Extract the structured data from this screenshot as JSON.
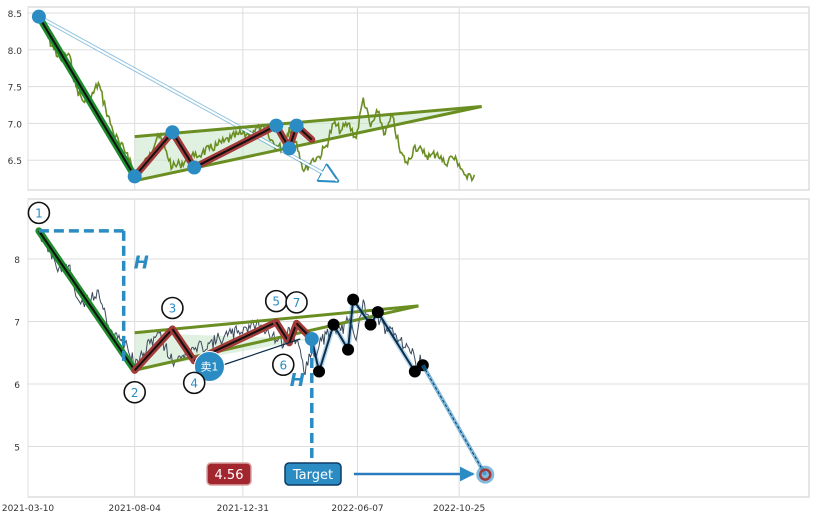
{
  "chart_data": [
    {
      "type": "line",
      "panel": "top",
      "title": "",
      "xlabel": "",
      "ylabel": "",
      "ylim": [
        6.05,
        8.6
      ],
      "y_ticks": [
        "8.5",
        "8.0",
        "7.5",
        "7.0",
        "6.5"
      ],
      "grid": true,
      "series": [
        {
          "color": "#6b8e23",
          "x": [
            "2021-03-25",
            "2021-04-05",
            "2021-04-15",
            "2021-04-25",
            "2021-05-05",
            "2021-05-15",
            "2021-05-25",
            "2021-06-05",
            "2021-06-15",
            "2021-06-25",
            "2021-07-05",
            "2021-07-15",
            "2021-07-25",
            "2021-08-04",
            "2021-08-15",
            "2021-08-25",
            "2021-09-05",
            "2021-09-15",
            "2021-09-25",
            "2021-10-05",
            "2021-10-15",
            "2021-10-25",
            "2021-11-05",
            "2021-11-15",
            "2021-11-25",
            "2021-12-05",
            "2021-12-15",
            "2021-12-25",
            "2022-01-05",
            "2022-01-15",
            "2022-01-25",
            "2022-02-05",
            "2022-02-15",
            "2022-02-25",
            "2022-03-05",
            "2022-03-15",
            "2022-03-25",
            "2022-04-05",
            "2022-04-15",
            "2022-04-25",
            "2022-05-05",
            "2022-05-15",
            "2022-05-25",
            "2022-06-05",
            "2022-06-15",
            "2022-06-25",
            "2022-07-05",
            "2022-07-15",
            "2022-07-25",
            "2022-08-05",
            "2022-08-15",
            "2022-08-25",
            "2022-09-05",
            "2022-09-15",
            "2022-09-25",
            "2022-10-05",
            "2022-10-15",
            "2022-10-25",
            "2022-11-05",
            "2022-11-15"
          ],
          "y": [
            8.45,
            8.2,
            8.0,
            7.85,
            7.95,
            7.5,
            7.3,
            7.35,
            7.55,
            7.2,
            6.9,
            6.7,
            6.6,
            6.3,
            6.4,
            6.6,
            6.85,
            6.65,
            6.4,
            6.45,
            6.5,
            6.55,
            6.6,
            6.65,
            6.7,
            6.75,
            6.8,
            6.85,
            6.85,
            6.9,
            6.95,
            6.8,
            6.7,
            6.65,
            6.95,
            6.75,
            6.35,
            6.5,
            6.55,
            6.7,
            7.0,
            6.9,
            7.0,
            6.8,
            7.35,
            6.95,
            7.15,
            6.85,
            7.1,
            6.6,
            6.45,
            6.7,
            6.6,
            6.55,
            6.6,
            6.45,
            6.55,
            6.45,
            6.25,
            6.3
          ]
        }
      ],
      "pattern": {
        "color": "#2b8cc4",
        "labels": [],
        "x": [
          "2021-03-25",
          "2021-08-04",
          "2021-09-25",
          "2021-10-25",
          "2022-02-15",
          "2022-03-05",
          "2022-03-15",
          "2022-04-05"
        ],
        "y": [
          8.45,
          6.28,
          6.88,
          6.4,
          6.97,
          6.66,
          6.97,
          6.78
        ]
      },
      "trendlines": [
        {
          "x": [
            "2021-08-04",
            "2022-11-25"
          ],
          "y": [
            6.82,
            7.23
          ]
        },
        {
          "x": [
            "2021-08-04",
            "2022-11-25"
          ],
          "y": [
            6.22,
            7.23
          ]
        }
      ],
      "projection_arrow": {
        "x": [
          "2021-03-25",
          "2022-05-10"
        ],
        "y": [
          8.45,
          6.22
        ]
      }
    },
    {
      "type": "line",
      "panel": "bottom",
      "title": "",
      "xlabel": "",
      "ylabel": "",
      "ylim": [
        4.2,
        8.95
      ],
      "y_ticks": [
        "8",
        "7",
        "6",
        "5"
      ],
      "x_ticks": [
        "2021-03-10",
        "2021-08-04",
        "2021-12-31",
        "2022-06-07",
        "2022-10-25"
      ],
      "grid": true,
      "series": [
        {
          "color": "#3d4a5c",
          "x": [
            "2021-03-25",
            "2021-04-05",
            "2021-04-15",
            "2021-04-25",
            "2021-05-05",
            "2021-05-15",
            "2021-05-25",
            "2021-06-05",
            "2021-06-15",
            "2021-06-25",
            "2021-07-05",
            "2021-07-15",
            "2021-07-25",
            "2021-08-04",
            "2021-08-15",
            "2021-08-25",
            "2021-09-05",
            "2021-09-15",
            "2021-09-25",
            "2021-10-05",
            "2021-10-15",
            "2021-10-25",
            "2021-11-05",
            "2021-11-15",
            "2021-11-25",
            "2021-12-05",
            "2021-12-15",
            "2021-12-25",
            "2022-01-05",
            "2022-01-15",
            "2022-01-25",
            "2022-02-05",
            "2022-02-15",
            "2022-02-25",
            "2022-03-05",
            "2022-03-15",
            "2022-03-25",
            "2022-04-05",
            "2022-04-15",
            "2022-04-25",
            "2022-05-05",
            "2022-05-15",
            "2022-05-25",
            "2022-06-05",
            "2022-06-15",
            "2022-06-25",
            "2022-07-05",
            "2022-07-15",
            "2022-07-25",
            "2022-08-05",
            "2022-08-15",
            "2022-08-25",
            "2022-09-05"
          ],
          "y": [
            8.45,
            8.2,
            8.0,
            7.8,
            7.9,
            7.4,
            7.3,
            7.35,
            7.5,
            7.1,
            6.8,
            6.7,
            6.6,
            6.3,
            6.45,
            6.65,
            6.85,
            6.6,
            6.35,
            6.45,
            6.5,
            6.55,
            6.6,
            6.65,
            6.7,
            6.75,
            6.8,
            6.85,
            6.9,
            6.95,
            6.95,
            6.8,
            6.7,
            6.6,
            6.9,
            6.7,
            6.2,
            6.5,
            6.6,
            6.8,
            6.95,
            6.85,
            7.0,
            6.7,
            7.35,
            6.95,
            7.1,
            6.8,
            6.9,
            6.7,
            6.6,
            6.4,
            6.35
          ]
        }
      ],
      "pattern": {
        "color": "#2b8cc4",
        "labels": [
          "1",
          "2",
          "3",
          "4",
          "5",
          "6",
          "7"
        ],
        "x": [
          "2021-03-25",
          "2021-08-04",
          "2021-09-25",
          "2021-10-25",
          "2022-02-15",
          "2022-03-05",
          "2022-03-15",
          "2022-04-05"
        ],
        "y": [
          8.45,
          6.22,
          6.88,
          6.37,
          6.99,
          6.66,
          6.97,
          6.72
        ]
      },
      "trendlines": [
        {
          "x": [
            "2021-08-04",
            "2022-08-30"
          ],
          "y": [
            6.82,
            7.25
          ]
        },
        {
          "x": [
            "2021-08-04",
            "2022-08-30"
          ],
          "y": [
            6.22,
            7.25
          ]
        }
      ],
      "projection": {
        "color": "#000000",
        "x": [
          "2022-04-05",
          "2022-04-15",
          "2022-05-05",
          "2022-05-25",
          "2022-06-01",
          "2022-06-25",
          "2022-07-05",
          "2022-08-25",
          "2022-09-05"
        ],
        "y": [
          6.72,
          6.2,
          6.95,
          6.55,
          7.35,
          6.95,
          7.15,
          6.2,
          6.3
        ]
      },
      "target_arrow": {
        "x": [
          "2022-09-05",
          "2022-11-30"
        ],
        "y": [
          6.3,
          4.55
        ]
      },
      "height_markers": {
        "label": "H",
        "first": {
          "x": "2021-08-04",
          "y": [
            8.45,
            6.22
          ]
        },
        "second": {
          "x": "2022-04-05",
          "y": [
            6.72,
            4.55
          ]
        }
      },
      "sell_marker": {
        "label": "卖1",
        "x": "2021-11-15",
        "y": 6.28
      },
      "target_value": {
        "label": "4.56",
        "y": 4.56
      },
      "target_label": "Target"
    }
  ],
  "colors": {
    "green": "#1e8c2e",
    "red_segment": "#a33a3a",
    "olive": "#6b8e23",
    "blue": "#2b8cc4",
    "value_badge": "#a1262e",
    "target_badge": "#2b8cc4"
  }
}
